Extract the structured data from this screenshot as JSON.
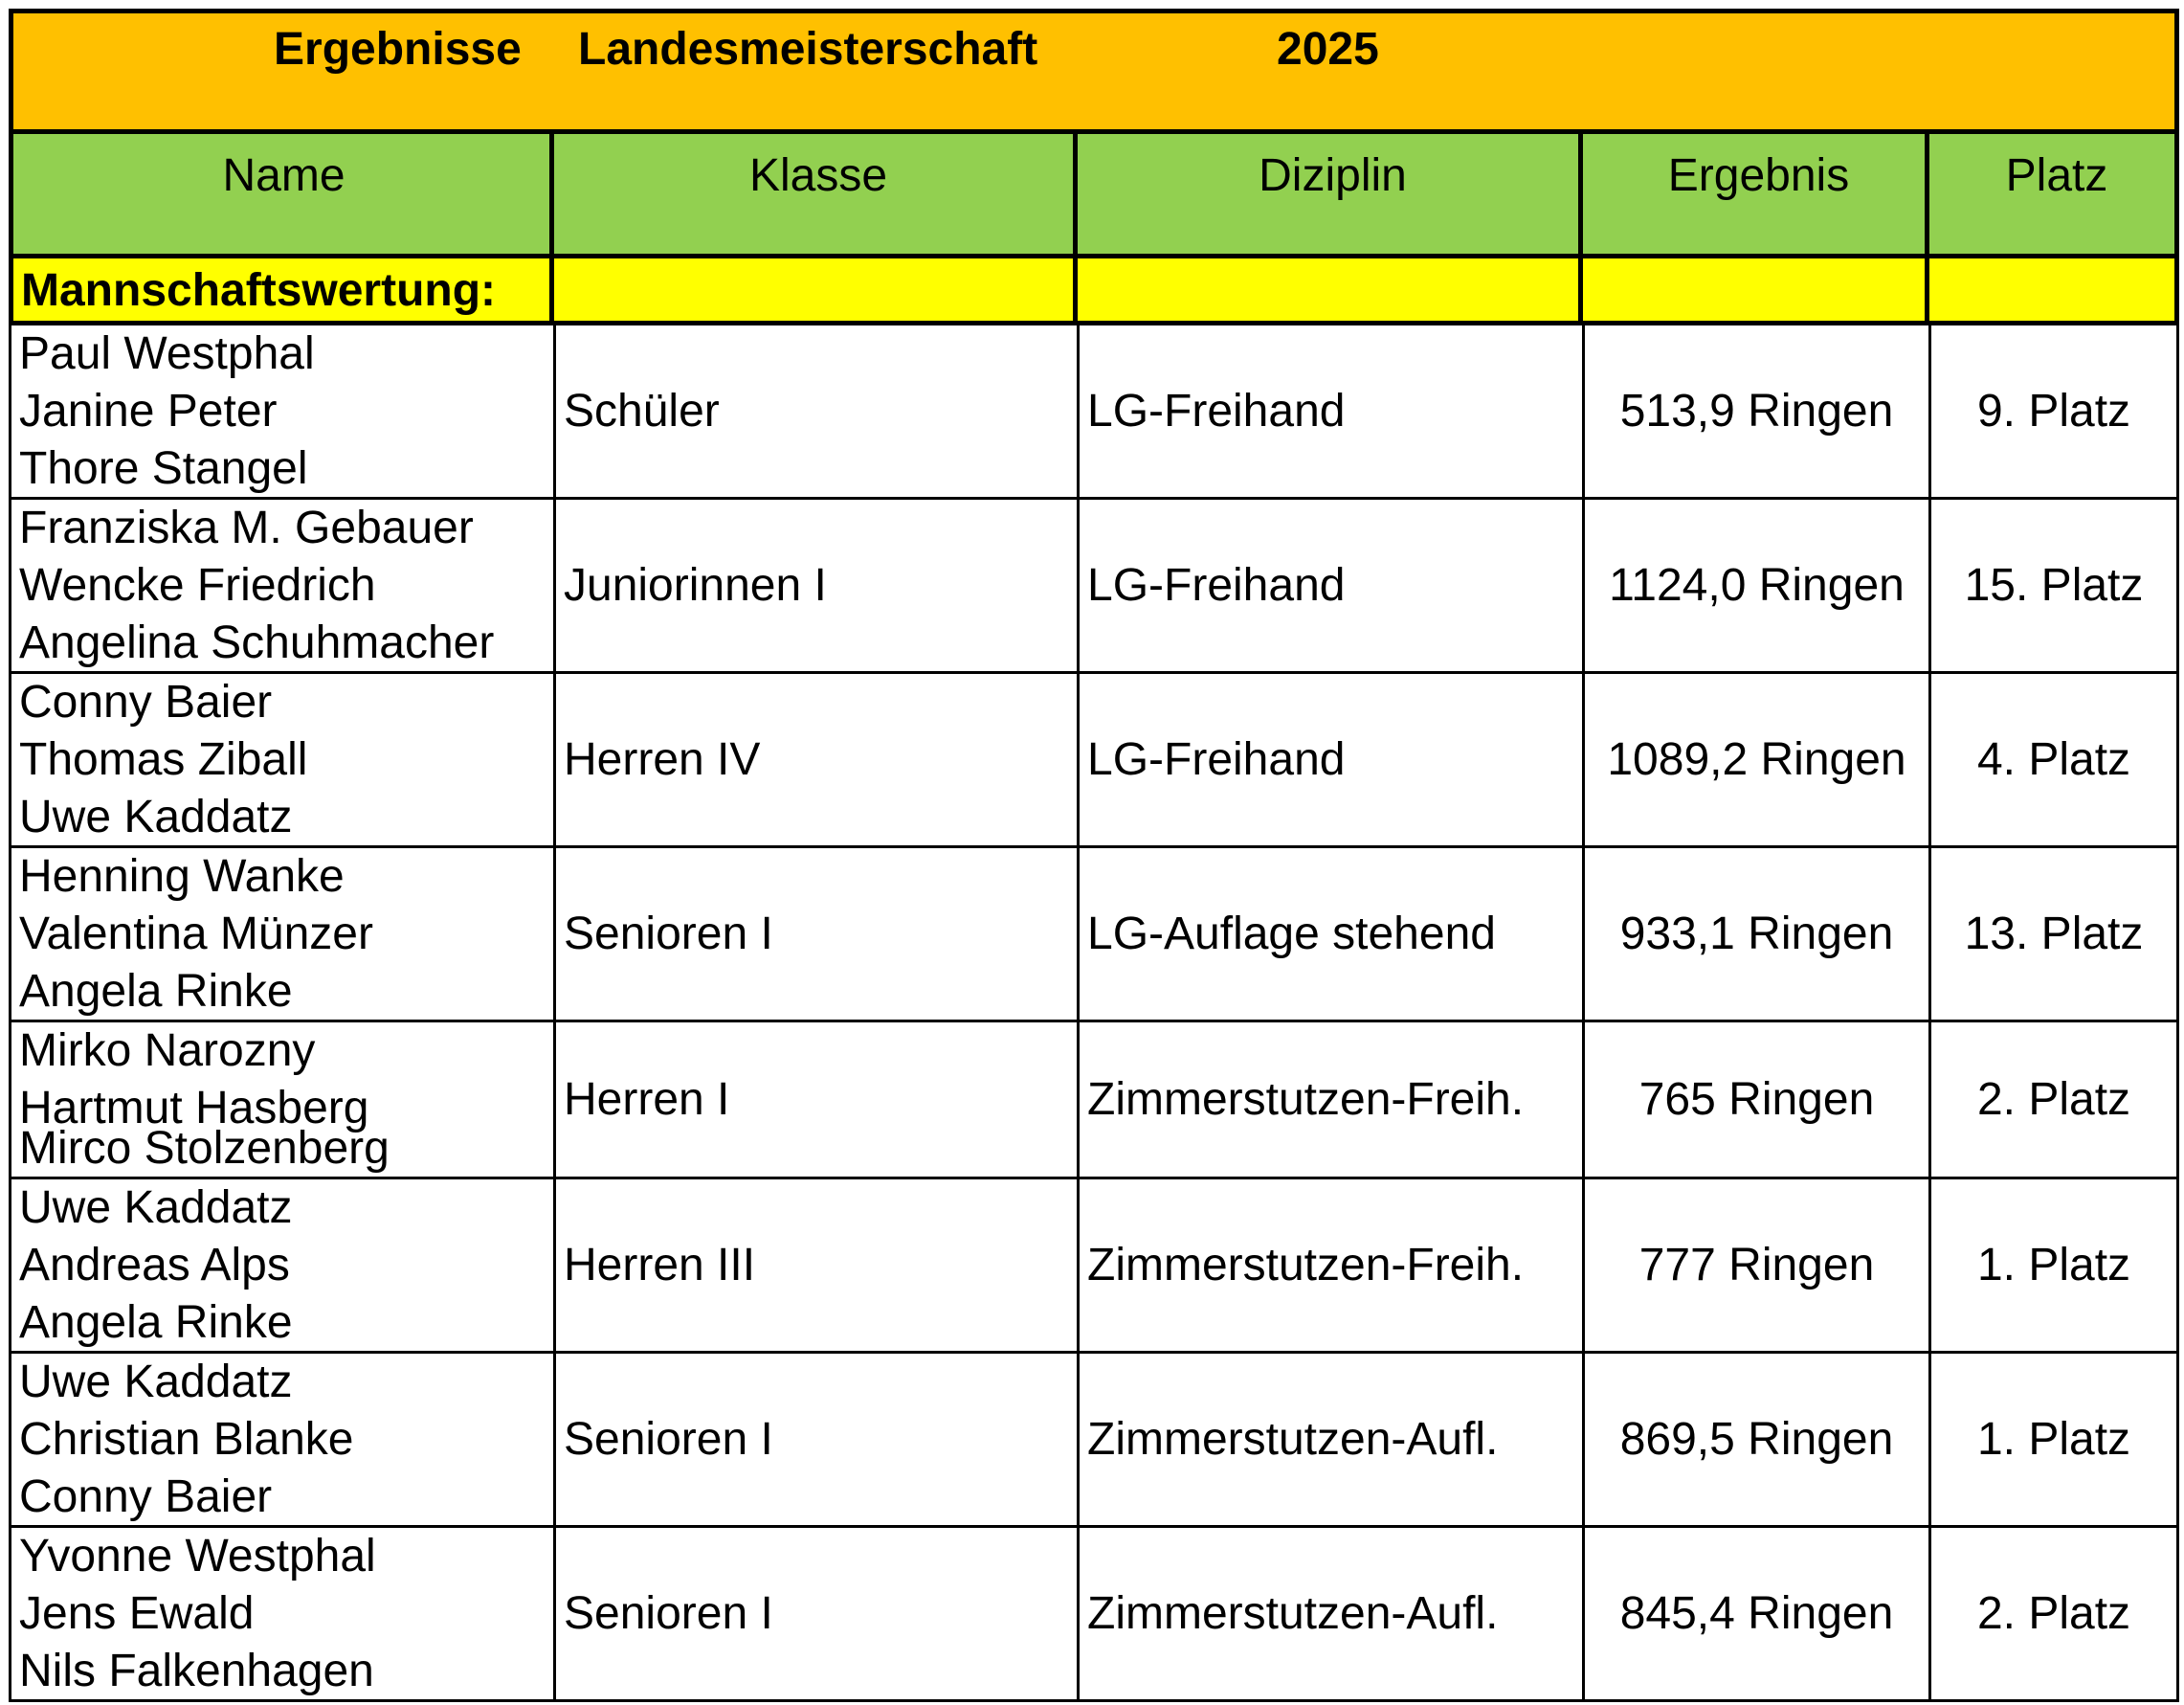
{
  "title": {
    "part1": "Ergebnisse",
    "part2": "Landesmeisterschaft",
    "part3": "2025"
  },
  "columns": [
    "Name",
    "Klasse",
    "Diziplin",
    "Ergebnis",
    "Platz"
  ],
  "section_label": "Mannschaftswertung:",
  "rows": [
    {
      "names": [
        "Paul Westphal",
        "Janine Peter",
        "Thore Stangel"
      ],
      "klasse": "Schüler",
      "disziplin": "LG-Freihand",
      "ergebnis": "513,9 Ringen",
      "platz": "9. Platz"
    },
    {
      "names": [
        "Franziska M. Gebauer",
        "Wencke Friedrich",
        "Angelina Schuhmacher"
      ],
      "klasse": "Juniorinnen I",
      "disziplin": "LG-Freihand",
      "ergebnis": "1124,0 Ringen",
      "platz": "15. Platz"
    },
    {
      "names": [
        "Conny Baier",
        "Thomas Ziball",
        "Uwe Kaddatz"
      ],
      "klasse": "Herren IV",
      "disziplin": "LG-Freihand",
      "ergebnis": "1089,2 Ringen",
      "platz": "4. Platz"
    },
    {
      "names": [
        "Henning Wanke",
        "Valentina Münzer",
        "Angela Rinke"
      ],
      "klasse": "Senioren I",
      "disziplin": "LG-Auflage stehend",
      "ergebnis": "933,1 Ringen",
      "platz": "13. Platz"
    },
    {
      "names": [
        "Mirko Narozny",
        "Hartmut Hasberg",
        "Mirco Stolzenberg"
      ],
      "klasse": "Herren I",
      "disziplin": "Zimmerstutzen-Freih.",
      "ergebnis": "765 Ringen",
      "platz": "2. Platz"
    },
    {
      "names": [
        "Uwe Kaddatz",
        "Andreas Alps",
        "Angela Rinke"
      ],
      "klasse": "Herren III",
      "disziplin": "Zimmerstutzen-Freih.",
      "ergebnis": "777 Ringen",
      "platz": "1. Platz"
    },
    {
      "names": [
        "Uwe Kaddatz",
        "Christian Blanke",
        "Conny Baier"
      ],
      "klasse": "Senioren I",
      "disziplin": "Zimmerstutzen-Aufl.",
      "ergebnis": "869,5 Ringen",
      "platz": "1. Platz"
    },
    {
      "names": [
        "Yvonne Westphal",
        "Jens Ewald",
        "Nils Falkenhagen"
      ],
      "klasse": "Senioren I",
      "disziplin": "Zimmerstutzen-Aufl.",
      "ergebnis": "845,4 Ringen",
      "platz": "2. Platz"
    }
  ]
}
